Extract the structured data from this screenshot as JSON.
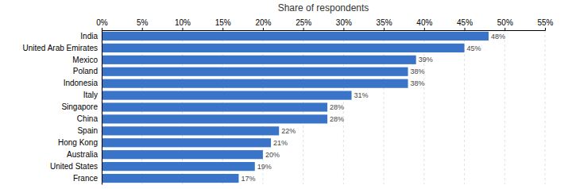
{
  "chart_data": {
    "type": "bar",
    "orientation": "horizontal",
    "title": "Share of respondents",
    "categories": [
      "France",
      "United States",
      "Australia",
      "Hong Kong",
      "Spain",
      "China",
      "Singapore",
      "Italy",
      "Indonesia",
      "Poland",
      "Mexico",
      "United Arab Emirates",
      "India"
    ],
    "values": [
      17,
      19,
      20,
      21,
      22,
      28,
      28,
      31,
      38,
      38,
      39,
      45,
      48
    ],
    "value_labels": [
      "17%",
      "19%",
      "20%",
      "21%",
      "22%",
      "28%",
      "28%",
      "31%",
      "38%",
      "38%",
      "39%",
      "45%",
      "48%"
    ],
    "data_labels": true,
    "color": "#3a74c8",
    "xlim": [
      0,
      55
    ],
    "xticks": [
      {
        "value": 0,
        "label": "0%"
      },
      {
        "value": 5,
        "label": "5%"
      },
      {
        "value": 10,
        "label": "10%"
      },
      {
        "value": 15,
        "label": "15%"
      },
      {
        "value": 20,
        "label": "20%"
      },
      {
        "value": 25,
        "label": "25%"
      },
      {
        "value": 30,
        "label": "30%"
      },
      {
        "value": 35,
        "label": "35%"
      },
      {
        "value": 40,
        "label": "40%"
      },
      {
        "value": 45,
        "label": "45%"
      },
      {
        "value": 50,
        "label": "50%"
      },
      {
        "value": 55,
        "label": "55%"
      }
    ],
    "grid": true
  }
}
